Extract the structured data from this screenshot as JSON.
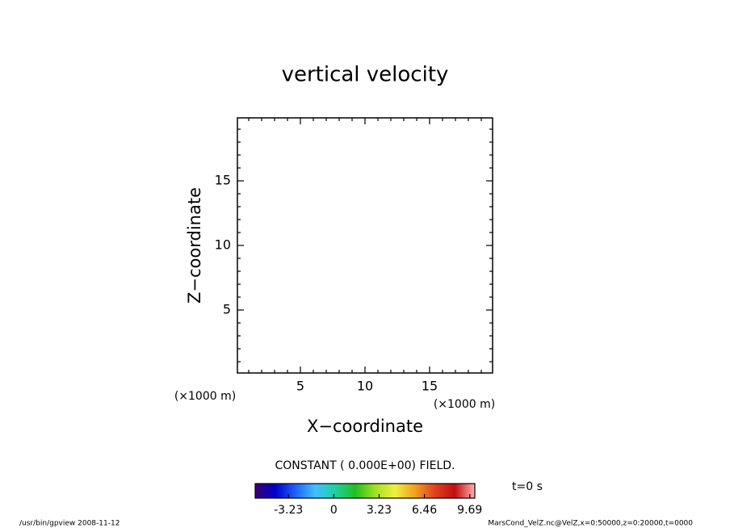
{
  "chart_data": {
    "type": "contour",
    "title": "vertical velocity",
    "xlabel": "X−coordinate",
    "ylabel": "Z−coordinate",
    "x_unit": "(×1000 m)",
    "y_unit": "(×1000 m)",
    "xlim": [
      0.125,
      19.875
    ],
    "ylim": [
      0.125,
      19.875
    ],
    "xticks": [
      5,
      10,
      15
    ],
    "yticks": [
      5,
      10,
      15
    ],
    "xminorticks": [
      1,
      2,
      3,
      4,
      6,
      7,
      8,
      9,
      11,
      12,
      13,
      14,
      16,
      17,
      18,
      19
    ],
    "yminorticks": [
      1,
      2,
      3,
      4,
      6,
      7,
      8,
      9,
      11,
      12,
      13,
      14,
      16,
      17,
      18,
      19
    ],
    "annotation": "CONSTANT ( 0.000E+00) FIELD.",
    "time_label": "t=0 s",
    "colorbar": {
      "lim": [
        -5.6,
        10.05
      ],
      "ticks": [
        -3.23,
        0,
        3.23,
        6.46,
        9.69
      ],
      "colors": [
        "#3a0078",
        "#0000c8",
        "#2060ff",
        "#40c0ff",
        "#20d0a0",
        "#20c020",
        "#a0e020",
        "#f0f040",
        "#f0a020",
        "#e04020",
        "#c01010",
        "#ffb0b0"
      ]
    },
    "footer_left": "/usr/bin/gpview  2008-11-12",
    "footer_right": "MarsCond_VelZ.nc@VelZ,x=0:50000,z=0:20000,t=0000"
  }
}
